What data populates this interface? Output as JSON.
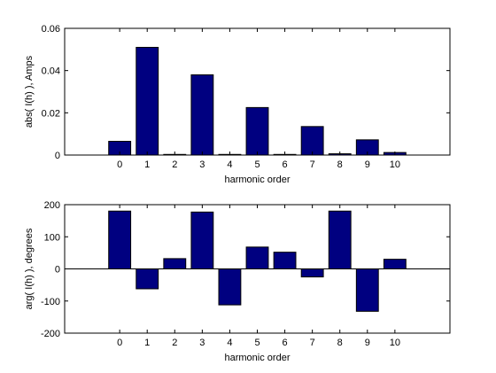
{
  "colors": {
    "bar_fill": "#000080",
    "bar_stroke": "#000000",
    "axes": "#000000",
    "background": "#ffffff"
  },
  "chart_data": [
    {
      "type": "bar",
      "categories": [
        "0",
        "1",
        "2",
        "3",
        "4",
        "5",
        "6",
        "7",
        "8",
        "9",
        "10"
      ],
      "values": [
        0.0065,
        0.051,
        0.0003,
        0.038,
        0.0003,
        0.0225,
        0.0003,
        0.0135,
        0.0006,
        0.0072,
        0.0012
      ],
      "xlabel": "harmonic order",
      "ylabel": "abs( I(h) ), Amps",
      "xlim": [
        -2,
        12
      ],
      "ylim": [
        0,
        0.06
      ],
      "yticks": [
        0,
        0.02,
        0.04,
        0.06
      ],
      "ytick_labels": [
        "0",
        "0.02",
        "0.04",
        "0.06"
      ],
      "grid": false
    },
    {
      "type": "bar",
      "categories": [
        "0",
        "1",
        "2",
        "3",
        "4",
        "5",
        "6",
        "7",
        "8",
        "9",
        "10"
      ],
      "values": [
        180,
        -62,
        32,
        177,
        -112,
        68,
        52,
        -25,
        180,
        -132,
        30
      ],
      "xlabel": "harmonic order",
      "ylabel": "arg( I(h) ), degrees",
      "xlim": [
        -2,
        12
      ],
      "ylim": [
        -200,
        200
      ],
      "yticks": [
        -200,
        -100,
        0,
        100,
        200
      ],
      "ytick_labels": [
        "-200",
        "-100",
        "0",
        "100",
        "200"
      ],
      "zero_line": true,
      "grid": false
    }
  ]
}
